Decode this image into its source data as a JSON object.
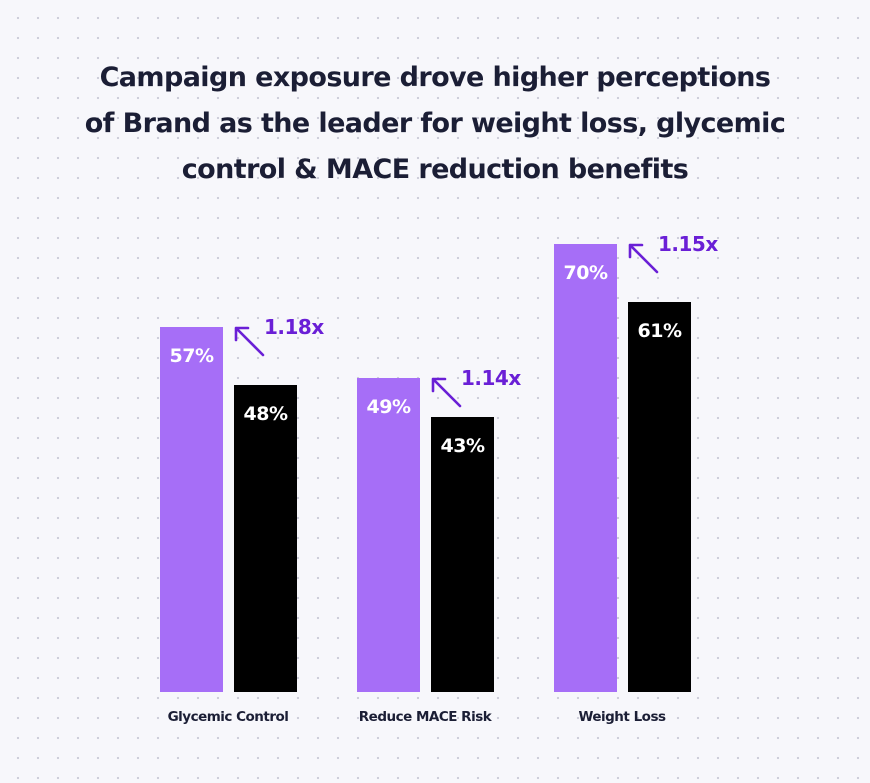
{
  "title_lines": [
    "Campaign exposure drove higher perceptions",
    "of Brand as the leader for weight loss, glycemic",
    "control & MACE reduction benefits"
  ],
  "colors": {
    "exposed": "#a66ef7",
    "control": "#000000",
    "lift": "#6a1fd6",
    "text": "#1b1e35"
  },
  "chart_data": {
    "type": "bar",
    "title": "Campaign exposure drove higher perceptions of Brand as the leader for weight loss, glycemic control & MACE reduction benefits",
    "categories": [
      "Glycemic Control",
      "Reduce MACE Risk",
      "Weight Loss"
    ],
    "series": [
      {
        "values": [
          57,
          49,
          70
        ],
        "labels": [
          "57%",
          "49%",
          "70%"
        ],
        "color": "#a66ef7"
      },
      {
        "values": [
          48,
          43,
          61
        ],
        "labels": [
          "48%",
          "43%",
          "61%"
        ],
        "color": "#000000"
      }
    ],
    "annotations": [
      "1.18x",
      "1.14x",
      "1.15x"
    ],
    "annotation_icon": "arrow-up-left-icon",
    "ylim": [
      0,
      100
    ],
    "grid": false,
    "xlabel": "",
    "ylabel": ""
  }
}
